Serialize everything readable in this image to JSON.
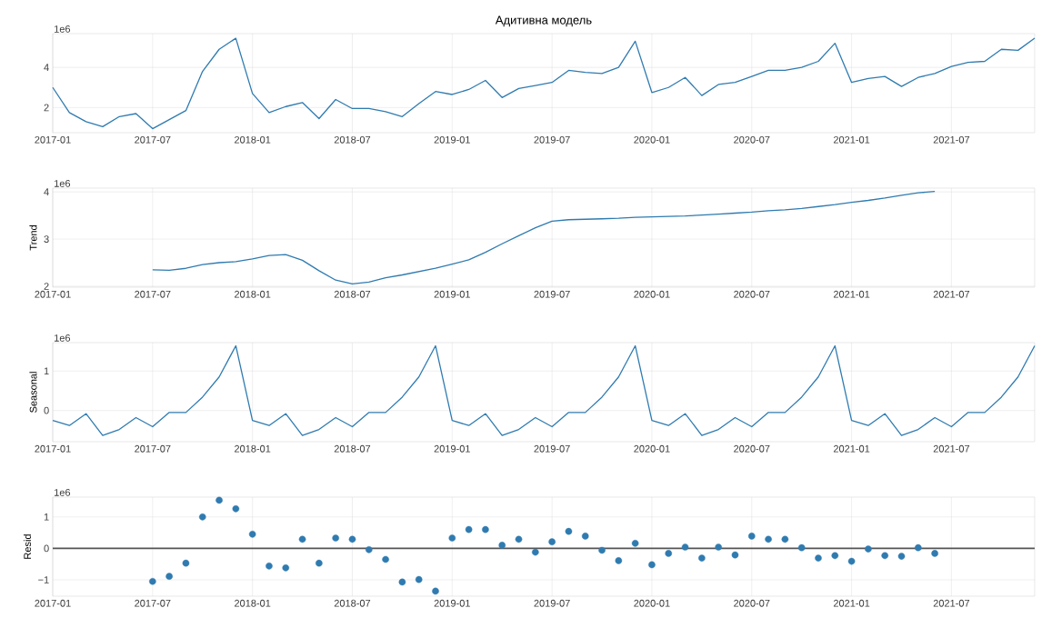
{
  "chart_data": [
    {
      "type": "line",
      "title": "Адитивна модель",
      "annotations": [
        "1e6"
      ],
      "color": "#2f7bb0",
      "grid": true,
      "marker": "none",
      "x": [
        "2017-01",
        "2017-02",
        "2017-03",
        "2017-04",
        "2017-05",
        "2017-06",
        "2017-07",
        "2017-08",
        "2017-09",
        "2017-10",
        "2017-11",
        "2017-12",
        "2018-01",
        "2018-02",
        "2018-03",
        "2018-04",
        "2018-05",
        "2018-06",
        "2018-07",
        "2018-08",
        "2018-09",
        "2018-10",
        "2018-11",
        "2018-12",
        "2019-01",
        "2019-02",
        "2019-03",
        "2019-04",
        "2019-05",
        "2019-06",
        "2019-07",
        "2019-08",
        "2019-09",
        "2019-10",
        "2019-11",
        "2019-12",
        "2020-01",
        "2020-02",
        "2020-03",
        "2020-04",
        "2020-05",
        "2020-06",
        "2020-07",
        "2020-08",
        "2020-09",
        "2020-10",
        "2020-11",
        "2020-12",
        "2021-01",
        "2021-02",
        "2021-03",
        "2021-04",
        "2021-05",
        "2021-06",
        "2021-07",
        "2021-08",
        "2021-09",
        "2021-10",
        "2021-11",
        "2021-12"
      ],
      "values": [
        3.0,
        1.75,
        1.3,
        1.05,
        1.55,
        1.7,
        0.95,
        1.4,
        1.85,
        3.8,
        4.9,
        5.45,
        2.7,
        1.75,
        2.05,
        2.25,
        1.45,
        2.4,
        1.95,
        1.95,
        1.8,
        1.55,
        2.2,
        2.8,
        2.65,
        2.9,
        3.35,
        2.5,
        2.95,
        3.1,
        3.25,
        3.85,
        3.75,
        3.7,
        4.0,
        5.3,
        2.75,
        3.0,
        3.5,
        2.6,
        3.15,
        3.25,
        3.55,
        3.85,
        3.85,
        4.0,
        4.3,
        5.2,
        3.25,
        3.45,
        3.55,
        3.05,
        3.5,
        3.7,
        4.05,
        4.25,
        4.3,
        4.9,
        4.85,
        5.45
      ],
      "xlim": [
        "2017-01",
        "2021-12"
      ],
      "xticks": [
        "2017-01",
        "2017-07",
        "2018-01",
        "2018-07",
        "2019-01",
        "2019-07",
        "2020-01",
        "2020-07",
        "2021-01",
        "2021-07"
      ],
      "ylim": [
        0.75,
        5.68
      ],
      "yticks": [
        2,
        4
      ]
    },
    {
      "type": "line",
      "ylabel": "Trend",
      "annotations": [
        "1e6"
      ],
      "color": "#2f7bb0",
      "grid": true,
      "marker": "none",
      "x": [
        "2017-07",
        "2017-08",
        "2017-09",
        "2017-10",
        "2017-11",
        "2017-12",
        "2018-01",
        "2018-02",
        "2018-03",
        "2018-04",
        "2018-05",
        "2018-06",
        "2018-07",
        "2018-08",
        "2018-09",
        "2018-10",
        "2018-11",
        "2018-12",
        "2019-01",
        "2019-02",
        "2019-03",
        "2019-04",
        "2019-05",
        "2019-06",
        "2019-07",
        "2019-08",
        "2019-09",
        "2019-10",
        "2019-11",
        "2019-12",
        "2020-01",
        "2020-02",
        "2020-03",
        "2020-04",
        "2020-05",
        "2020-06",
        "2020-07",
        "2020-08",
        "2020-09",
        "2020-10",
        "2020-11",
        "2020-12",
        "2021-01",
        "2021-02",
        "2021-03",
        "2021-04",
        "2021-05",
        "2021-06"
      ],
      "values": [
        2.35,
        2.34,
        2.38,
        2.46,
        2.5,
        2.52,
        2.58,
        2.65,
        2.67,
        2.55,
        2.33,
        2.13,
        2.05,
        2.09,
        2.18,
        2.24,
        2.31,
        2.38,
        2.47,
        2.56,
        2.72,
        2.9,
        3.07,
        3.24,
        3.38,
        3.41,
        3.42,
        3.43,
        3.44,
        3.46,
        3.47,
        3.48,
        3.49,
        3.51,
        3.53,
        3.55,
        3.57,
        3.6,
        3.62,
        3.65,
        3.69,
        3.73,
        3.78,
        3.82,
        3.87,
        3.93,
        3.98,
        4.01
      ],
      "xlim": [
        "2017-01",
        "2021-12"
      ],
      "xticks": [
        "2017-01",
        "2017-07",
        "2018-01",
        "2018-07",
        "2019-01",
        "2019-07",
        "2020-01",
        "2020-07",
        "2021-01",
        "2021-07"
      ],
      "ylim": [
        1.98,
        4.08
      ],
      "yticks": [
        2,
        3,
        4
      ]
    },
    {
      "type": "line",
      "ylabel": "Seasonal",
      "annotations": [
        "1e6"
      ],
      "color": "#2f7bb0",
      "grid": true,
      "marker": "none",
      "x": [
        "2017-01",
        "2017-02",
        "2017-03",
        "2017-04",
        "2017-05",
        "2017-06",
        "2017-07",
        "2017-08",
        "2017-09",
        "2017-10",
        "2017-11",
        "2017-12",
        "2018-01",
        "2018-02",
        "2018-03",
        "2018-04",
        "2018-05",
        "2018-06",
        "2018-07",
        "2018-08",
        "2018-09",
        "2018-10",
        "2018-11",
        "2018-12",
        "2019-01",
        "2019-02",
        "2019-03",
        "2019-04",
        "2019-05",
        "2019-06",
        "2019-07",
        "2019-08",
        "2019-09",
        "2019-10",
        "2019-11",
        "2019-12",
        "2020-01",
        "2020-02",
        "2020-03",
        "2020-04",
        "2020-05",
        "2020-06",
        "2020-07",
        "2020-08",
        "2020-09",
        "2020-10",
        "2020-11",
        "2020-12",
        "2021-01",
        "2021-02",
        "2021-03",
        "2021-04",
        "2021-05",
        "2021-06",
        "2021-07",
        "2021-08",
        "2021-09",
        "2021-10",
        "2021-11",
        "2021-12"
      ],
      "values": [
        -0.25,
        -0.38,
        -0.08,
        -0.63,
        -0.48,
        -0.18,
        -0.41,
        -0.05,
        -0.05,
        0.34,
        0.85,
        1.64,
        -0.25,
        -0.38,
        -0.08,
        -0.63,
        -0.48,
        -0.18,
        -0.41,
        -0.05,
        -0.05,
        0.34,
        0.85,
        1.64,
        -0.25,
        -0.38,
        -0.08,
        -0.63,
        -0.48,
        -0.18,
        -0.41,
        -0.05,
        -0.05,
        0.34,
        0.85,
        1.64,
        -0.25,
        -0.38,
        -0.08,
        -0.63,
        -0.48,
        -0.18,
        -0.41,
        -0.05,
        -0.05,
        0.34,
        0.85,
        1.64,
        -0.25,
        -0.38,
        -0.08,
        -0.63,
        -0.48,
        -0.18,
        -0.41,
        -0.05,
        -0.05,
        0.34,
        0.85,
        1.64
      ],
      "xlim": [
        "2017-01",
        "2021-12"
      ],
      "xticks": [
        "2017-01",
        "2017-07",
        "2018-01",
        "2018-07",
        "2019-01",
        "2019-07",
        "2020-01",
        "2020-07",
        "2021-01",
        "2021-07"
      ],
      "ylim": [
        -0.79,
        1.72
      ],
      "yticks": [
        0,
        1
      ]
    },
    {
      "type": "scatter",
      "ylabel": "Resid",
      "annotations": [
        "1e6"
      ],
      "color": "#2f7bb0",
      "grid": true,
      "marker": "circle",
      "x": [
        "2017-07",
        "2017-08",
        "2017-09",
        "2017-10",
        "2017-11",
        "2017-12",
        "2018-01",
        "2018-02",
        "2018-03",
        "2018-04",
        "2018-05",
        "2018-06",
        "2018-07",
        "2018-08",
        "2018-09",
        "2018-10",
        "2018-11",
        "2018-12",
        "2019-01",
        "2019-02",
        "2019-03",
        "2019-04",
        "2019-05",
        "2019-06",
        "2019-07",
        "2019-08",
        "2019-09",
        "2019-10",
        "2019-11",
        "2019-12",
        "2020-01",
        "2020-02",
        "2020-03",
        "2020-04",
        "2020-05",
        "2020-06",
        "2020-07",
        "2020-08",
        "2020-09",
        "2020-10",
        "2020-11",
        "2020-12",
        "2021-01",
        "2021-02",
        "2021-03",
        "2021-04",
        "2021-05",
        "2021-06"
      ],
      "values": [
        -1.05,
        -0.89,
        -0.47,
        1.0,
        1.53,
        1.26,
        0.45,
        -0.56,
        -0.62,
        0.29,
        -0.47,
        0.33,
        0.29,
        -0.04,
        -0.35,
        -1.07,
        -0.99,
        -1.36,
        0.33,
        0.6,
        0.6,
        0.1,
        0.29,
        -0.12,
        0.21,
        0.54,
        0.39,
        -0.06,
        -0.39,
        0.16,
        -0.52,
        -0.16,
        0.04,
        -0.31,
        0.04,
        -0.21,
        0.39,
        0.29,
        0.29,
        0.02,
        -0.31,
        -0.23,
        -0.41,
        -0.02,
        -0.23,
        -0.25,
        0.02,
        -0.16
      ],
      "xlim": [
        "2017-01",
        "2021-12"
      ],
      "xticks": [
        "2017-01",
        "2017-07",
        "2018-01",
        "2018-07",
        "2019-01",
        "2019-07",
        "2020-01",
        "2020-07",
        "2021-01",
        "2021-07"
      ],
      "ylim": [
        -1.52,
        1.63
      ],
      "yticks": [
        {
          "value": -1,
          "label": "−1"
        },
        0,
        1
      ],
      "ref_lines": [
        {
          "axis": "y",
          "value": 0,
          "color": "#555555"
        }
      ]
    }
  ]
}
